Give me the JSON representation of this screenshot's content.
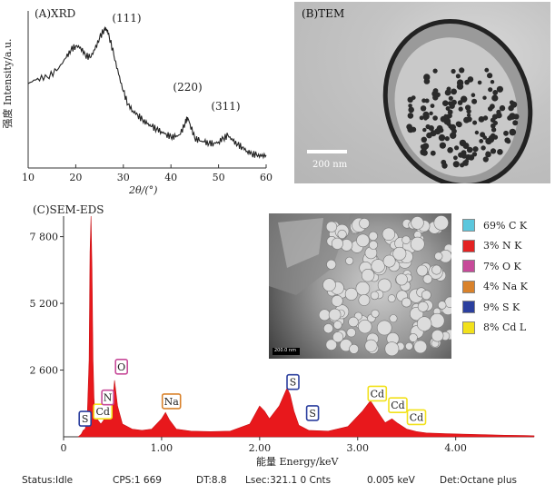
{
  "chart_data": [
    {
      "type": "line",
      "panel_label": "(A)XRD",
      "xlabel": "2θ/(°)",
      "ylabel": "强度 Intensity/a.u.",
      "xlim": [
        10,
        60
      ],
      "x_ticks": [
        "10",
        "20",
        "30",
        "40",
        "50",
        "60"
      ],
      "series": [
        {
          "x": [
            10,
            12,
            14,
            16,
            18,
            19,
            20,
            21,
            22,
            23,
            24,
            25,
            26,
            26.5,
            27,
            28,
            29,
            30,
            31,
            32,
            33,
            34,
            35,
            36,
            37,
            38,
            39,
            40,
            41,
            42,
            43,
            43.5,
            44,
            45,
            46,
            47,
            48,
            49,
            50,
            51,
            52,
            53,
            54,
            55,
            56,
            57,
            58,
            59,
            60
          ],
          "y": [
            0.58,
            0.62,
            0.63,
            0.68,
            0.78,
            0.84,
            0.87,
            0.86,
            0.8,
            0.78,
            0.84,
            0.93,
            1.0,
            1.0,
            0.95,
            0.8,
            0.65,
            0.52,
            0.42,
            0.37,
            0.34,
            0.3,
            0.27,
            0.25,
            0.23,
            0.21,
            0.19,
            0.17,
            0.17,
            0.19,
            0.28,
            0.32,
            0.27,
            0.16,
            0.14,
            0.13,
            0.12,
            0.12,
            0.13,
            0.16,
            0.18,
            0.14,
            0.11,
            0.09,
            0.06,
            0.04,
            0.03,
            0.02,
            0.03
          ]
        }
      ],
      "annotations": [
        {
          "text": "(111)",
          "x": 26.5
        },
        {
          "text": "(220)",
          "x": 43.5
        },
        {
          "text": "(311)",
          "x": 51.5
        }
      ]
    },
    {
      "type": "area",
      "panel_label": "(C)SEM-EDS",
      "xlabel": "能量 Energy/keV",
      "xlim": [
        0,
        4.8
      ],
      "ylim": [
        0,
        8600
      ],
      "x_ticks": [
        "0",
        "1.00",
        "2.00",
        "3.00",
        "4.00"
      ],
      "y_ticks": [
        "2 600",
        "5 200",
        "7 800"
      ],
      "series": [
        {
          "x": [
            0.15,
            0.18,
            0.2,
            0.22,
            0.24,
            0.26,
            0.27,
            0.28,
            0.29,
            0.3,
            0.31,
            0.32,
            0.34,
            0.36,
            0.38,
            0.4,
            0.45,
            0.5,
            0.52,
            0.55,
            0.6,
            0.7,
            0.8,
            0.9,
            1.0,
            1.04,
            1.08,
            1.15,
            1.3,
            1.5,
            1.7,
            1.9,
            2.0,
            2.05,
            2.1,
            2.2,
            2.28,
            2.31,
            2.35,
            2.4,
            2.5,
            2.7,
            2.9,
            3.05,
            3.13,
            3.2,
            3.28,
            3.35,
            3.4,
            3.5,
            3.6,
            3.7,
            3.9,
            4.1,
            4.3,
            4.5,
            4.7,
            4.8
          ],
          "y": [
            0,
            100,
            250,
            300,
            600,
            3000,
            7200,
            8600,
            6500,
            3000,
            1500,
            900,
            700,
            600,
            500,
            600,
            900,
            1300,
            2200,
            1200,
            500,
            300,
            250,
            300,
            700,
            950,
            650,
            300,
            220,
            200,
            220,
            500,
            1200,
            1000,
            700,
            1200,
            1900,
            1650,
            1000,
            450,
            250,
            220,
            400,
            1000,
            1400,
            1000,
            550,
            700,
            550,
            300,
            200,
            150,
            120,
            100,
            80,
            60,
            50,
            40
          ]
        }
      ],
      "peak_labels": [
        {
          "text": "S",
          "x": 0.22,
          "y": 420,
          "color": "#2b3f9e"
        },
        {
          "text": "Cd",
          "x": 0.4,
          "y": 700,
          "color": "#f2e11b"
        },
        {
          "text": "N",
          "x": 0.45,
          "y": 1250,
          "color": "#c74a99"
        },
        {
          "text": "O",
          "x": 0.59,
          "y": 2450,
          "color": "#c74a99"
        },
        {
          "text": "Na",
          "x": 1.1,
          "y": 1100,
          "color": "#d9822b"
        },
        {
          "text": "S",
          "x": 2.34,
          "y": 1850,
          "color": "#2b3f9e"
        },
        {
          "text": "S",
          "x": 2.54,
          "y": 640,
          "color": "#2b3f9e"
        },
        {
          "text": "Cd",
          "x": 3.2,
          "y": 1400,
          "color": "#f2e11b"
        },
        {
          "text": "Cd",
          "x": 3.41,
          "y": 950,
          "color": "#f2e11b"
        },
        {
          "text": "Cd",
          "x": 3.6,
          "y": 480,
          "color": "#f2e11b"
        }
      ]
    }
  ],
  "tem": {
    "label": "(B)TEM",
    "scale_label": "200 nm"
  },
  "sem_image": {
    "scale_label": "200.0 nm"
  },
  "legend": [
    {
      "label": "69% C K",
      "color": "#5bc7dd"
    },
    {
      "label": "3% N K",
      "color": "#e32222"
    },
    {
      "label": "7% O K",
      "color": "#c74a99"
    },
    {
      "label": "4% Na K",
      "color": "#d9822b"
    },
    {
      "label": "9% S K",
      "color": "#2b3f9e"
    },
    {
      "label": "8% Cd L",
      "color": "#f2e11b"
    }
  ],
  "status_bar": {
    "status": "Status:Idle",
    "cps": "CPS:1 669",
    "dt": "DT:8.8",
    "lsec": "Lsec:321.1  0 Cnts",
    "kev": "0.005 keV",
    "det": "Det:Octane plus"
  },
  "colors": {
    "spectrum_fill": "#e8181c",
    "axis": "#333333"
  }
}
